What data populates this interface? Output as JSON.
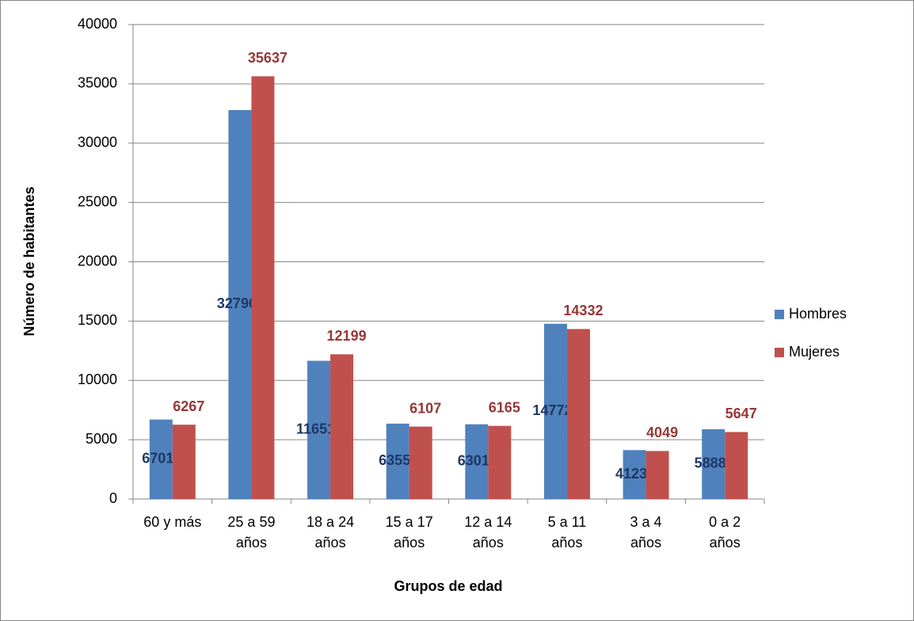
{
  "chart_data": {
    "type": "bar",
    "x_label": "Grupos de edad",
    "y_label": "Número de habitantes",
    "categories": [
      "60 y más",
      "25 a 59 años",
      "18 a 24 años",
      "15 a 17 años",
      "12 a 14 años",
      "5 a 11 años",
      "3 a 4 años",
      "0 a 2 años"
    ],
    "series": [
      {
        "name": "Hombres",
        "color": "#4f81bd",
        "label_color": "#1f3864",
        "values": [
          6701,
          32790,
          11651,
          6355,
          6301,
          14772,
          4123,
          5888
        ]
      },
      {
        "name": "Mujeres",
        "color": "#c0504d",
        "label_color": "#953735",
        "values": [
          6267,
          35637,
          12199,
          6107,
          6165,
          14332,
          4049,
          5647
        ]
      }
    ],
    "ylim": [
      0,
      40000
    ],
    "yticks": [
      0,
      5000,
      10000,
      15000,
      20000,
      25000,
      30000,
      35000,
      40000
    ],
    "grid": true,
    "legend": "right"
  }
}
